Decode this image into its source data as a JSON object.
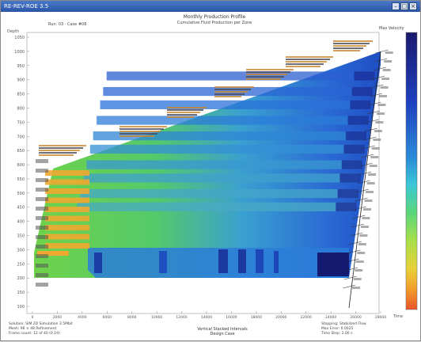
{
  "window": {
    "title": "RE-REV-ROE 3.5"
  },
  "header": {
    "title": "Monthly Production Profile",
    "subtitle": "Cumulative Fluid Production per Zone",
    "run_info": "Run: 03 · Case #08"
  },
  "axes": {
    "y_label": "Depth",
    "x_label": "Time",
    "y_ticks": [
      "100",
      "150",
      "200",
      "250",
      "300",
      "350",
      "400",
      "450",
      "500",
      "550",
      "600",
      "650",
      "700",
      "750",
      "800",
      "850",
      "900",
      "950",
      "1000",
      "1050"
    ],
    "x_ticks": [
      "0",
      "2000",
      "4000",
      "6000",
      "8000",
      "10000",
      "12000",
      "14000",
      "16000",
      "18000",
      "20000",
      "22000",
      "24000",
      "26000",
      "28000"
    ]
  },
  "colorbar": {
    "title": "Max Velocity",
    "stops": [
      "#1a1a6e",
      "#1f3fbf",
      "#2a8ad8",
      "#3bc7d6",
      "#5ad67a",
      "#a6e04a",
      "#e8d23a",
      "#f29a2a",
      "#e8552a"
    ]
  },
  "footer": {
    "left_lines": [
      "Solution: SIM 2D Simulation 3.5Mbit",
      "Mesh: 96 × 48 Refinement",
      "Frame count: 12 of 40 (0.19)"
    ],
    "center_lines": [
      "Vertical Stacked Intervals",
      "Design Case"
    ],
    "right_lines": [
      "Stopping: Stabilized Flow",
      "Max Error: 0.0025",
      "Time Step: 2.00 s"
    ]
  },
  "bands": [
    {
      "top": 0.93,
      "bottom": 0.89,
      "inner_color": "#2b5fd0",
      "edge_color": "#7fd94a"
    },
    {
      "top": 0.86,
      "bottom": 0.82,
      "inner_color": "#2a66d4",
      "edge_color": "#6ed44e"
    },
    {
      "top": 0.8,
      "bottom": 0.76,
      "inner_color": "#2a72d8",
      "edge_color": "#62d052"
    },
    {
      "top": 0.73,
      "bottom": 0.69,
      "inner_color": "#2b7cd8",
      "edge_color": "#62d052"
    },
    {
      "top": 0.66,
      "bottom": 0.62,
      "inner_color": "#2f86d6",
      "edge_color": "#62d052"
    },
    {
      "top": 0.6,
      "bottom": 0.56,
      "inner_color": "#3490d4",
      "edge_color": "#62d052"
    },
    {
      "top": 0.53,
      "bottom": 0.49,
      "inner_color": "#3a98d0",
      "edge_color": "#62d052"
    },
    {
      "top": 0.47,
      "bottom": 0.43,
      "inner_color": "#40a0cc",
      "edge_color": "#62d052"
    },
    {
      "top": 0.4,
      "bottom": 0.36,
      "inner_color": "#46a6c8",
      "edge_color": "#62d052"
    },
    {
      "top": 0.34,
      "bottom": 0.3,
      "inner_color": "#4aaac4",
      "edge_color": "#62d052"
    }
  ]
}
